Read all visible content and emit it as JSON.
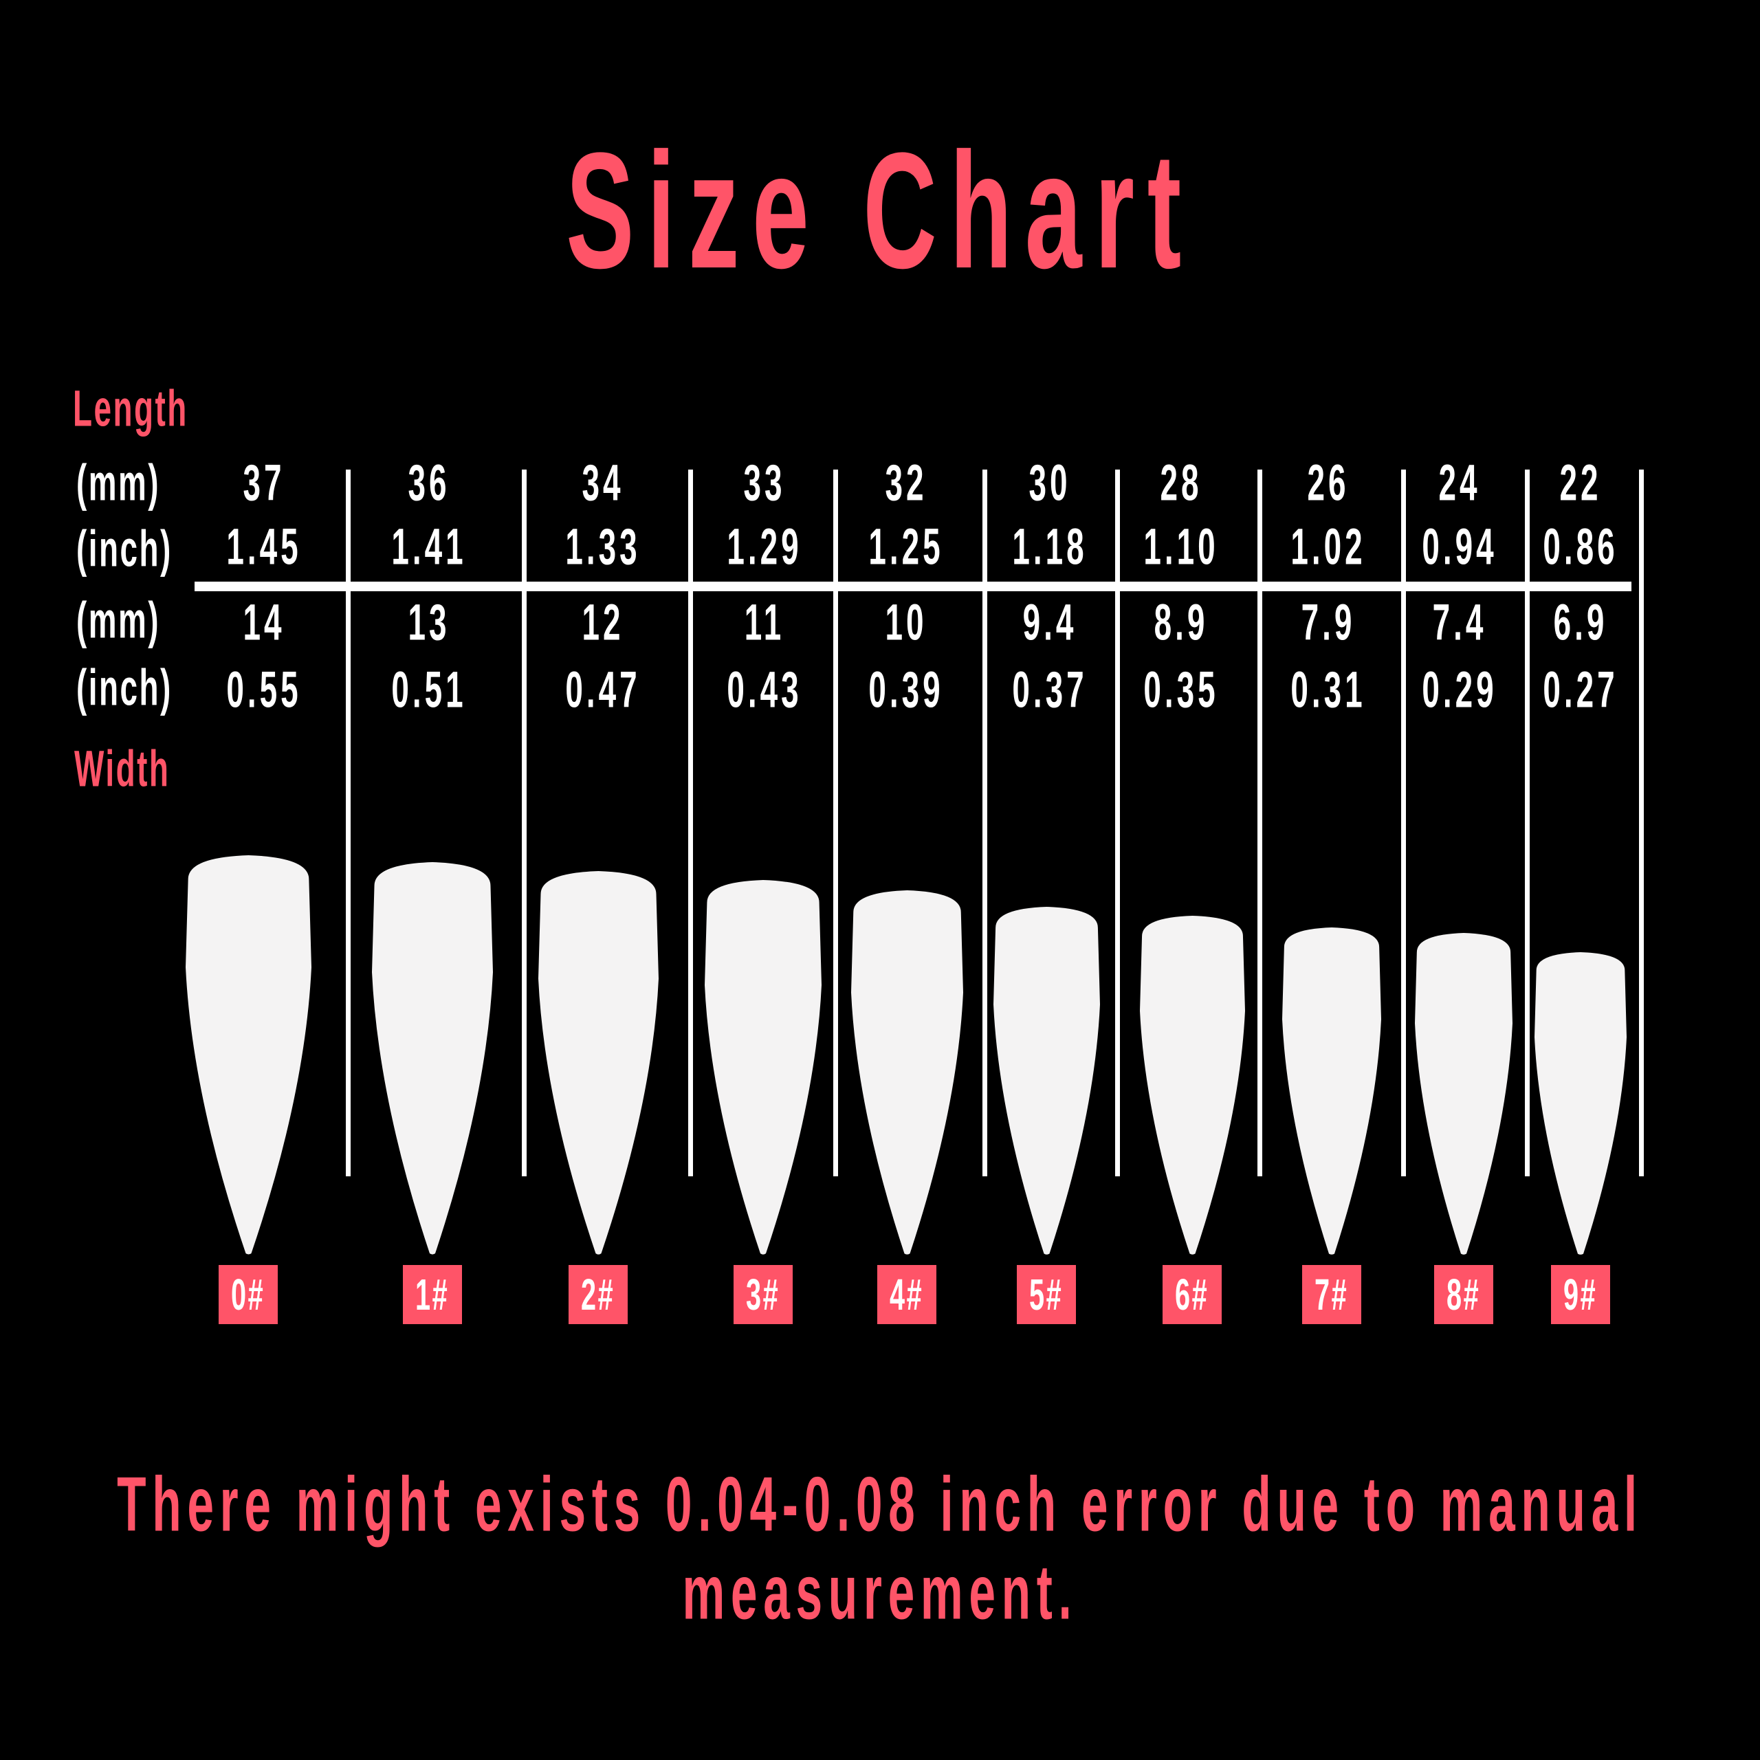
{
  "title": "Size Chart",
  "labels": {
    "length": "Length",
    "width": "Width",
    "mm": "(mm)",
    "inch": "(inch)"
  },
  "colors": {
    "accent": "#ff5468",
    "background": "#000000",
    "text": "#ffffff",
    "nail": "#f4f3f3"
  },
  "sizes": [
    {
      "size": "0#",
      "length_mm": "37",
      "length_inch": "1.45",
      "width_mm": "14",
      "width_inch": "0.55"
    },
    {
      "size": "1#",
      "length_mm": "36",
      "length_inch": "1.41",
      "width_mm": "13",
      "width_inch": "0.51"
    },
    {
      "size": "2#",
      "length_mm": "34",
      "length_inch": "1.33",
      "width_mm": "12",
      "width_inch": "0.47"
    },
    {
      "size": "3#",
      "length_mm": "33",
      "length_inch": "1.29",
      "width_mm": "11",
      "width_inch": "0.43"
    },
    {
      "size": "4#",
      "length_mm": "32",
      "length_inch": "1.25",
      "width_mm": "10",
      "width_inch": "0.39"
    },
    {
      "size": "5#",
      "length_mm": "30",
      "length_inch": "1.18",
      "width_mm": "9.4",
      "width_inch": "0.37"
    },
    {
      "size": "6#",
      "length_mm": "28",
      "length_inch": "1.10",
      "width_mm": "8.9",
      "width_inch": "0.35"
    },
    {
      "size": "7#",
      "length_mm": "26",
      "length_inch": "1.02",
      "width_mm": "7.9",
      "width_inch": "0.31"
    },
    {
      "size": "8#",
      "length_mm": "24",
      "length_inch": "0.94",
      "width_mm": "7.4",
      "width_inch": "0.29"
    },
    {
      "size": "9#",
      "length_mm": "22",
      "length_inch": "0.86",
      "width_mm": "6.9",
      "width_inch": "0.27"
    }
  ],
  "footer": {
    "line1": "There might exists 0.04-0.08 inch error due to manual",
    "line2": "measurement."
  }
}
